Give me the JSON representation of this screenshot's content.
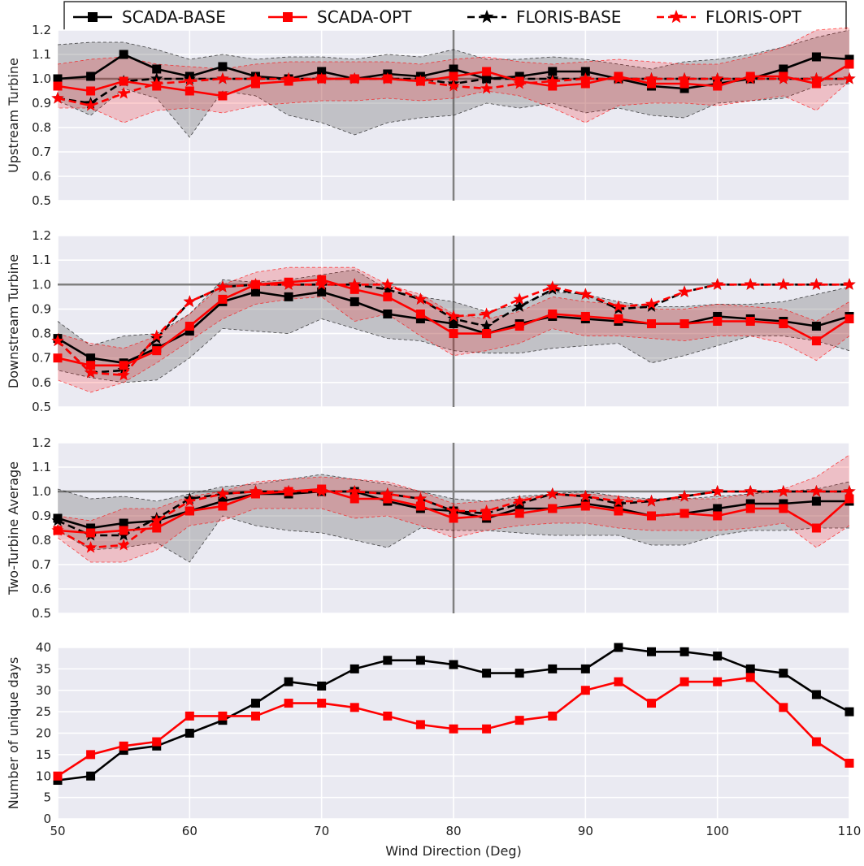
{
  "legend": {
    "entries": [
      "SCADA-BASE",
      "SCADA-OPT",
      "FLORIS-BASE",
      "FLORIS-OPT"
    ],
    "placement": "top"
  },
  "chart_data": [
    {
      "type": "line",
      "ylabel": "Upstream Turbine",
      "xlabel": "",
      "xlim": [
        50,
        110
      ],
      "ylim": [
        0.5,
        1.2
      ],
      "yticks": [
        "0.5",
        "0.6",
        "0.7",
        "0.8",
        "0.9",
        "1.0",
        "1.1",
        "1.2"
      ],
      "x": [
        50,
        52.5,
        55,
        57.5,
        60,
        62.5,
        65,
        67.5,
        70,
        72.5,
        75,
        77.5,
        80,
        82.5,
        85,
        87.5,
        90,
        92.5,
        95,
        97.5,
        100,
        102.5,
        105,
        107.5,
        110
      ],
      "series": [
        {
          "name": "SCADA-BASE",
          "color": "#000000",
          "style": "solid",
          "marker": "square",
          "values": [
            1.0,
            1.01,
            1.1,
            1.04,
            1.01,
            1.05,
            1.01,
            1.0,
            1.03,
            1.0,
            1.02,
            1.01,
            1.04,
            1.0,
            1.01,
            1.03,
            1.03,
            1.0,
            0.97,
            0.96,
            0.98,
            1.0,
            1.04,
            1.09,
            1.08
          ],
          "band_low": [
            0.91,
            0.85,
            0.96,
            0.92,
            0.76,
            0.95,
            0.93,
            0.85,
            0.82,
            0.77,
            0.82,
            0.84,
            0.85,
            0.9,
            0.88,
            0.9,
            0.86,
            0.88,
            0.85,
            0.84,
            0.9,
            0.91,
            0.92,
            0.97,
            0.98
          ],
          "band_high": [
            1.14,
            1.15,
            1.15,
            1.12,
            1.08,
            1.1,
            1.08,
            1.09,
            1.09,
            1.08,
            1.1,
            1.09,
            1.12,
            1.08,
            1.08,
            1.09,
            1.08,
            1.06,
            1.04,
            1.07,
            1.08,
            1.1,
            1.13,
            1.17,
            1.2
          ]
        },
        {
          "name": "SCADA-OPT",
          "color": "#ff0000",
          "style": "solid",
          "marker": "square",
          "values": [
            0.97,
            0.95,
            0.99,
            0.97,
            0.95,
            0.93,
            0.98,
            0.99,
            1.0,
            1.0,
            1.0,
            0.99,
            1.01,
            1.03,
            0.99,
            0.97,
            0.98,
            1.01,
            0.98,
            0.98,
            0.97,
            1.01,
            1.01,
            0.98,
            1.06
          ],
          "band_low": [
            0.88,
            0.88,
            0.82,
            0.87,
            0.88,
            0.86,
            0.89,
            0.9,
            0.91,
            0.91,
            0.92,
            0.91,
            0.92,
            0.95,
            0.93,
            0.88,
            0.82,
            0.89,
            0.9,
            0.9,
            0.89,
            0.91,
            0.93,
            0.87,
            0.99
          ],
          "band_high": [
            1.06,
            1.08,
            1.09,
            1.06,
            1.05,
            1.04,
            1.06,
            1.07,
            1.07,
            1.07,
            1.07,
            1.06,
            1.08,
            1.09,
            1.07,
            1.06,
            1.07,
            1.08,
            1.07,
            1.06,
            1.06,
            1.09,
            1.13,
            1.2,
            1.21
          ]
        },
        {
          "name": "FLORIS-BASE",
          "color": "#000000",
          "style": "dashed",
          "marker": "star",
          "values": [
            0.92,
            0.9,
            0.99,
            1.0,
            1.0,
            1.0,
            1.0,
            1.0,
            1.0,
            1.0,
            1.0,
            1.0,
            0.98,
            1.0,
            1.0,
            1.0,
            1.0,
            1.0,
            1.0,
            1.0,
            1.0,
            1.0,
            1.0,
            1.0,
            1.0
          ]
        },
        {
          "name": "FLORIS-OPT",
          "color": "#ff0000",
          "style": "dashed",
          "marker": "star",
          "values": [
            0.92,
            0.89,
            0.94,
            0.98,
            0.99,
            1.0,
            1.0,
            1.0,
            1.0,
            1.0,
            1.0,
            0.99,
            0.97,
            0.96,
            0.98,
            0.99,
            1.0,
            1.0,
            1.0,
            1.0,
            1.0,
            1.0,
            1.0,
            1.0,
            1.0
          ]
        }
      ],
      "hlines": [
        1.0
      ],
      "vlines": [
        80
      ]
    },
    {
      "type": "line",
      "ylabel": "Downstream Turbine",
      "xlabel": "",
      "xlim": [
        50,
        110
      ],
      "ylim": [
        0.5,
        1.2
      ],
      "yticks": [
        "0.5",
        "0.6",
        "0.7",
        "0.8",
        "0.9",
        "1.0",
        "1.1",
        "1.2"
      ],
      "x": [
        50,
        52.5,
        55,
        57.5,
        60,
        62.5,
        65,
        67.5,
        70,
        72.5,
        75,
        77.5,
        80,
        82.5,
        85,
        87.5,
        90,
        92.5,
        95,
        97.5,
        100,
        102.5,
        105,
        107.5,
        110
      ],
      "series": [
        {
          "name": "SCADA-BASE",
          "color": "#000000",
          "style": "solid",
          "marker": "square",
          "values": [
            0.78,
            0.7,
            0.68,
            0.74,
            0.81,
            0.93,
            0.97,
            0.95,
            0.97,
            0.93,
            0.88,
            0.86,
            0.84,
            0.8,
            0.84,
            0.87,
            0.86,
            0.85,
            0.84,
            0.84,
            0.87,
            0.86,
            0.85,
            0.83,
            0.87
          ],
          "band_low": [
            0.65,
            0.62,
            0.6,
            0.61,
            0.7,
            0.82,
            0.81,
            0.8,
            0.86,
            0.82,
            0.78,
            0.77,
            0.73,
            0.72,
            0.72,
            0.74,
            0.75,
            0.76,
            0.68,
            0.71,
            0.75,
            0.79,
            0.79,
            0.77,
            0.73
          ],
          "band_high": [
            0.85,
            0.75,
            0.79,
            0.8,
            0.88,
            1.02,
            1.01,
            1.02,
            1.04,
            1.06,
            0.98,
            0.95,
            0.93,
            0.89,
            0.92,
            0.97,
            0.96,
            0.93,
            0.91,
            0.91,
            0.92,
            0.92,
            0.93,
            0.96,
            0.99
          ]
        },
        {
          "name": "SCADA-OPT",
          "color": "#ff0000",
          "style": "solid",
          "marker": "square",
          "values": [
            0.7,
            0.67,
            0.67,
            0.73,
            0.83,
            0.94,
            1.0,
            1.01,
            1.02,
            0.98,
            0.95,
            0.88,
            0.8,
            0.8,
            0.83,
            0.88,
            0.87,
            0.86,
            0.84,
            0.84,
            0.85,
            0.85,
            0.84,
            0.77,
            0.86
          ],
          "band_low": [
            0.61,
            0.56,
            0.6,
            0.68,
            0.77,
            0.86,
            0.92,
            0.94,
            0.95,
            0.85,
            0.88,
            0.79,
            0.71,
            0.73,
            0.76,
            0.82,
            0.79,
            0.79,
            0.78,
            0.77,
            0.79,
            0.79,
            0.76,
            0.69,
            0.79
          ],
          "band_high": [
            0.8,
            0.76,
            0.74,
            0.79,
            0.88,
            1.0,
            1.05,
            1.07,
            1.07,
            1.07,
            1.0,
            0.96,
            0.88,
            0.86,
            0.89,
            0.95,
            0.93,
            0.92,
            0.9,
            0.9,
            0.92,
            0.91,
            0.9,
            0.85,
            0.93
          ]
        },
        {
          "name": "FLORIS-BASE",
          "color": "#000000",
          "style": "dashed",
          "marker": "star",
          "values": [
            0.77,
            0.64,
            0.65,
            0.78,
            0.93,
            0.99,
            1.0,
            1.0,
            1.0,
            1.0,
            0.98,
            0.94,
            0.86,
            0.83,
            0.91,
            0.98,
            0.96,
            0.9,
            0.91,
            0.97,
            1.0,
            1.0,
            1.0,
            1.0,
            1.0
          ]
        },
        {
          "name": "FLORIS-OPT",
          "color": "#ff0000",
          "style": "dashed",
          "marker": "star",
          "values": [
            0.77,
            0.64,
            0.63,
            0.79,
            0.93,
            0.99,
            1.0,
            1.0,
            1.0,
            1.0,
            1.0,
            0.94,
            0.87,
            0.88,
            0.94,
            0.99,
            0.96,
            0.91,
            0.92,
            0.97,
            1.0,
            1.0,
            1.0,
            1.0,
            1.0
          ]
        }
      ],
      "hlines": [
        1.0
      ],
      "vlines": [
        80
      ]
    },
    {
      "type": "line",
      "ylabel": "Two-Turbine Average",
      "xlabel": "",
      "xlim": [
        50,
        110
      ],
      "ylim": [
        0.5,
        1.2
      ],
      "yticks": [
        "0.5",
        "0.6",
        "0.7",
        "0.8",
        "0.9",
        "1.0",
        "1.1",
        "1.2"
      ],
      "x": [
        50,
        52.5,
        55,
        57.5,
        60,
        62.5,
        65,
        67.5,
        70,
        72.5,
        75,
        77.5,
        80,
        82.5,
        85,
        87.5,
        90,
        92.5,
        95,
        97.5,
        100,
        102.5,
        105,
        107.5,
        110
      ],
      "series": [
        {
          "name": "SCADA-BASE",
          "color": "#000000",
          "style": "solid",
          "marker": "square",
          "values": [
            0.89,
            0.85,
            0.87,
            0.88,
            0.92,
            0.96,
            0.99,
            0.99,
            1.0,
            1.0,
            0.96,
            0.93,
            0.92,
            0.89,
            0.93,
            0.93,
            0.95,
            0.93,
            0.9,
            0.91,
            0.93,
            0.95,
            0.95,
            0.96,
            0.96
          ],
          "band_low": [
            0.84,
            0.76,
            0.77,
            0.79,
            0.71,
            0.9,
            0.86,
            0.84,
            0.83,
            0.8,
            0.77,
            0.85,
            0.84,
            0.84,
            0.83,
            0.82,
            0.82,
            0.82,
            0.78,
            0.78,
            0.82,
            0.84,
            0.84,
            0.85,
            0.85
          ],
          "band_high": [
            1.01,
            0.97,
            0.98,
            0.96,
            0.99,
            1.02,
            1.03,
            1.05,
            1.07,
            1.05,
            1.03,
            1.0,
            0.97,
            0.96,
            0.98,
            0.99,
            1.0,
            0.98,
            0.97,
            0.97,
            0.98,
            0.99,
            1.0,
            1.01,
            1.04
          ]
        },
        {
          "name": "SCADA-OPT",
          "color": "#ff0000",
          "style": "solid",
          "marker": "square",
          "values": [
            0.84,
            0.83,
            0.84,
            0.85,
            0.92,
            0.94,
            0.99,
            1.0,
            1.01,
            0.97,
            0.97,
            0.94,
            0.89,
            0.9,
            0.91,
            0.93,
            0.94,
            0.92,
            0.9,
            0.91,
            0.9,
            0.93,
            0.93,
            0.85,
            0.97
          ],
          "band_low": [
            0.81,
            0.71,
            0.71,
            0.76,
            0.86,
            0.88,
            0.93,
            0.93,
            0.93,
            0.89,
            0.9,
            0.86,
            0.81,
            0.84,
            0.86,
            0.87,
            0.87,
            0.85,
            0.84,
            0.84,
            0.84,
            0.85,
            0.87,
            0.77,
            0.86
          ],
          "band_high": [
            0.9,
            0.88,
            0.93,
            0.93,
            0.98,
            1.0,
            1.04,
            1.05,
            1.06,
            1.05,
            1.04,
            1.0,
            0.95,
            0.96,
            0.97,
            0.99,
            0.99,
            0.98,
            0.96,
            0.97,
            0.97,
            0.99,
            1.01,
            1.06,
            1.15
          ]
        },
        {
          "name": "FLORIS-BASE",
          "color": "#000000",
          "style": "dashed",
          "marker": "star",
          "values": [
            0.88,
            0.82,
            0.82,
            0.89,
            0.97,
            0.99,
            1.0,
            1.0,
            1.0,
            1.0,
            0.99,
            0.97,
            0.92,
            0.91,
            0.95,
            0.99,
            0.98,
            0.95,
            0.96,
            0.98,
            1.0,
            1.0,
            1.0,
            1.0,
            1.0
          ]
        },
        {
          "name": "FLORIS-OPT",
          "color": "#ff0000",
          "style": "dashed",
          "marker": "star",
          "values": [
            0.84,
            0.77,
            0.78,
            0.88,
            0.96,
            0.99,
            1.0,
            1.0,
            1.0,
            1.0,
            0.99,
            0.97,
            0.92,
            0.92,
            0.96,
            0.99,
            0.98,
            0.96,
            0.96,
            0.98,
            1.0,
            1.0,
            1.0,
            1.0,
            1.0
          ]
        }
      ],
      "hlines": [
        1.0
      ],
      "vlines": [
        80
      ]
    },
    {
      "type": "line",
      "ylabel": "Number of unique days",
      "xlabel": "Wind Direction (Deg)",
      "xlim": [
        50,
        110
      ],
      "ylim": [
        0,
        40
      ],
      "yticks": [
        "0",
        "5",
        "10",
        "15",
        "20",
        "25",
        "30",
        "35",
        "40"
      ],
      "xticks": [
        "50",
        "60",
        "70",
        "80",
        "90",
        "100",
        "110"
      ],
      "x": [
        50,
        52.5,
        55,
        57.5,
        60,
        62.5,
        65,
        67.5,
        70,
        72.5,
        75,
        77.5,
        80,
        82.5,
        85,
        87.5,
        90,
        92.5,
        95,
        97.5,
        100,
        102.5,
        105,
        107.5,
        110
      ],
      "series": [
        {
          "name": "SCADA-BASE",
          "color": "#000000",
          "style": "solid",
          "marker": "square",
          "values": [
            9,
            10,
            16,
            17,
            20,
            23,
            27,
            32,
            31,
            35,
            37,
            37,
            36,
            34,
            34,
            35,
            35,
            40,
            39,
            39,
            38,
            35,
            34,
            29,
            25
          ]
        },
        {
          "name": "SCADA-OPT",
          "color": "#ff0000",
          "style": "solid",
          "marker": "square",
          "values": [
            10,
            15,
            17,
            18,
            24,
            24,
            24,
            27,
            27,
            26,
            24,
            22,
            21,
            21,
            23,
            24,
            30,
            32,
            27,
            32,
            32,
            33,
            26,
            18,
            13
          ]
        }
      ],
      "hlines": [],
      "vlines": []
    }
  ]
}
